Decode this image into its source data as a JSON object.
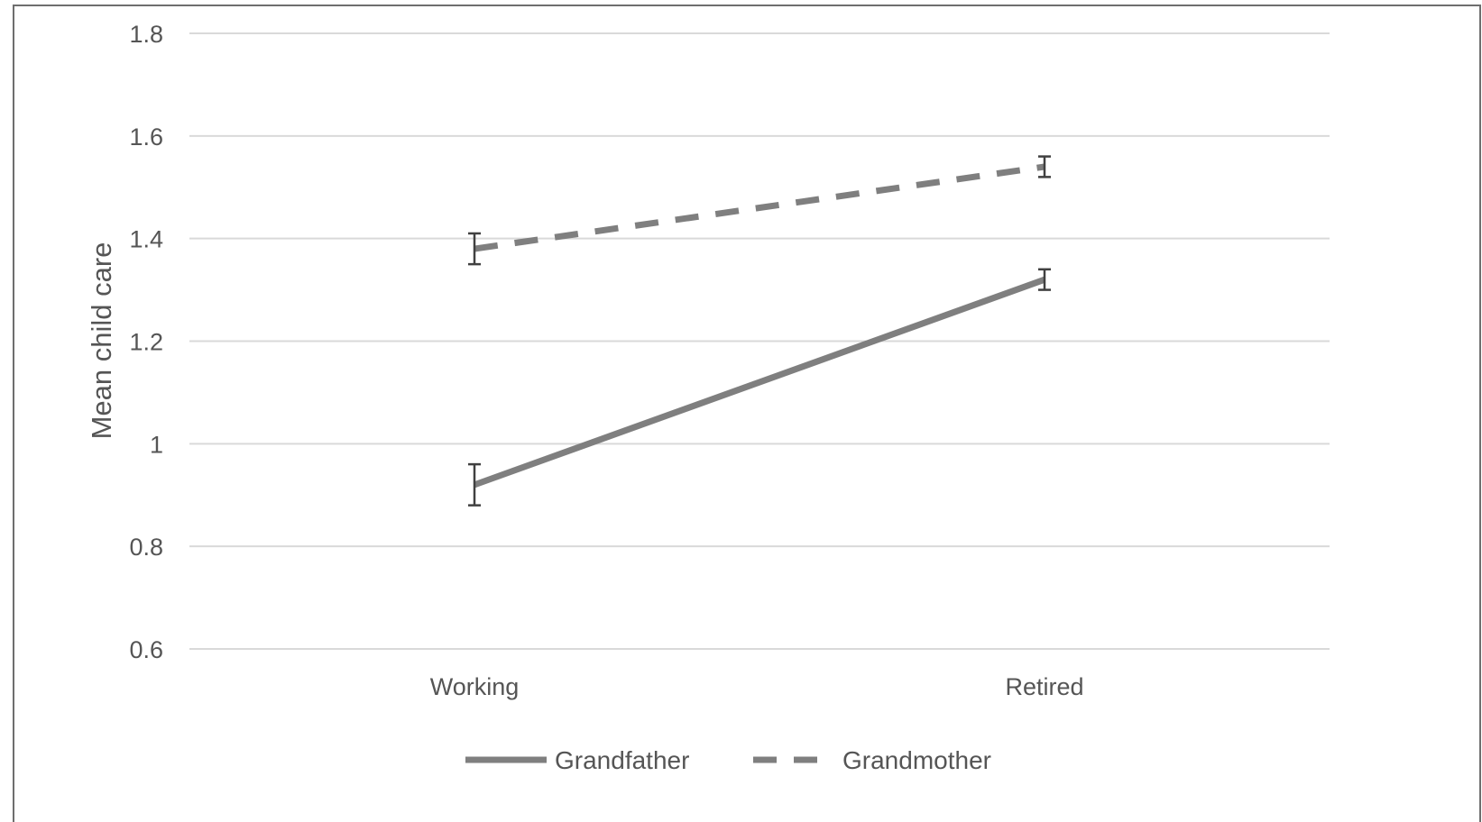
{
  "chart_data": {
    "type": "line",
    "title": "",
    "xlabel": "",
    "ylabel": "Mean child care",
    "categories": [
      "Working",
      "Retired"
    ],
    "ylim": [
      0.6,
      1.8
    ],
    "yticks": [
      0.6,
      0.8,
      1,
      1.2,
      1.4,
      1.6,
      1.8
    ],
    "ytick_labels": [
      "0.6",
      "0.8",
      "1",
      "1.2",
      "1.4",
      "1.6",
      "1.8"
    ],
    "grid": "horizontal",
    "legend_position": "bottom",
    "series": [
      {
        "name": "Grandfather",
        "line_style": "solid",
        "color": "#7f7f7f",
        "values": [
          0.92,
          1.32
        ],
        "error_low": [
          0.88,
          1.3
        ],
        "error_high": [
          0.96,
          1.34
        ]
      },
      {
        "name": "Grandmother",
        "line_style": "dashed",
        "color": "#7f7f7f",
        "values": [
          1.38,
          1.54
        ],
        "error_low": [
          1.35,
          1.52
        ],
        "error_high": [
          1.41,
          1.56
        ]
      }
    ],
    "colors": {
      "grid": "#d9d9d9",
      "text": "#555555",
      "error_bar": "#404040",
      "frame": "#6e6e6e"
    }
  }
}
